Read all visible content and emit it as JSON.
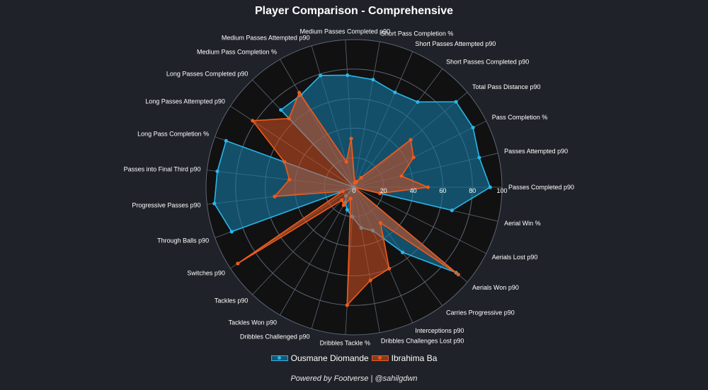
{
  "chart_data": {
    "type": "radar",
    "title": "Player Comparison - Comprehensive",
    "rlim": [
      0,
      100
    ],
    "r_ticks": [
      "0",
      "20",
      "40",
      "60",
      "80",
      "100"
    ],
    "grid": true,
    "legend_position": "bottom",
    "categories": [
      "Passes Completed p90",
      "Passes Attempted p90",
      "Pass Completion %",
      "Total Pass Distance p90",
      "Short Passes Completed p90",
      "Short Passes Attempted p90",
      "Short Pass Completion %",
      "Medium Passes Completed p90",
      "Medium Passes Attempted p90",
      "Medium Pass Completion %",
      "Long Passes Completed p90",
      "Long Passes Attempted p90",
      "Long Pass Completion %",
      "Passes into Final Third p90",
      "Progressive Passes p90",
      "Through Balls p90",
      "Switches p90",
      "Tackles p90",
      "Tackles Won p90",
      "Dribbles Challenged p90",
      "Dribbles Tackle %",
      "Dribbles Challenges Lost p90",
      "Interceptions p90",
      "Carries Progressive p90",
      "Aerials Won p90",
      "Aerials Lost p90",
      "Aerial Win %"
    ],
    "series": [
      {
        "name": "Ousmane Diomande",
        "color": "#29b6e8",
        "fill": "rgba(23,118,160,0.62)",
        "values": [
          92,
          87,
          90,
          90,
          72,
          70,
          74,
          76,
          79,
          72,
          72,
          0,
          92,
          93,
          95,
          88,
          0,
          8,
          12,
          16,
          20,
          28,
          32,
          55,
          90,
          0,
          68
        ]
      },
      {
        "name": "Ibrahima Ba",
        "color": "#f05a1a",
        "fill": "rgba(214,82,34,0.55)",
        "values": [
          50,
          33,
          45,
          50,
          8,
          4,
          3,
          33,
          18,
          74,
          64,
          82,
          50,
          44,
          54,
          8,
          94,
          12,
          14,
          8,
          80,
          64,
          60,
          30,
          92,
          0,
          18
        ]
      }
    ]
  },
  "legend": {
    "series_1": "Ousmane Diomande",
    "series_2": "Ibrahima Ba"
  },
  "footer": {
    "credit": "Powered by Footverse | @sahilgdwn"
  },
  "colors": {
    "background": "#1f2228",
    "plot_background": "#111111",
    "grid": "#5c6677"
  }
}
